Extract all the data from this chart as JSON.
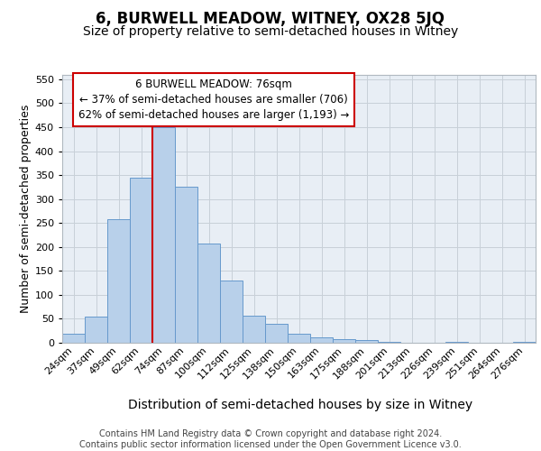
{
  "title": "6, BURWELL MEADOW, WITNEY, OX28 5JQ",
  "subtitle": "Size of property relative to semi-detached houses in Witney",
  "xlabel": "Distribution of semi-detached houses by size in Witney",
  "ylabel": "Number of semi-detached properties",
  "footer_line1": "Contains HM Land Registry data © Crown copyright and database right 2024.",
  "footer_line2": "Contains public sector information licensed under the Open Government Licence v3.0.",
  "categories": [
    "24sqm",
    "37sqm",
    "49sqm",
    "62sqm",
    "74sqm",
    "87sqm",
    "100sqm",
    "112sqm",
    "125sqm",
    "138sqm",
    "150sqm",
    "163sqm",
    "175sqm",
    "188sqm",
    "201sqm",
    "213sqm",
    "226sqm",
    "239sqm",
    "251sqm",
    "264sqm",
    "276sqm"
  ],
  "values": [
    18,
    55,
    258,
    345,
    450,
    325,
    208,
    130,
    57,
    40,
    18,
    12,
    8,
    5,
    2,
    0,
    0,
    2,
    0,
    0,
    2
  ],
  "bar_color": "#b8d0ea",
  "bar_edge_color": "#6699cc",
  "highlight_line_color": "#cc0000",
  "annotation_box_text_line1": "6 BURWELL MEADOW: 76sqm",
  "annotation_box_text_line2": "← 37% of semi-detached houses are smaller (706)",
  "annotation_box_text_line3": "62% of semi-detached houses are larger (1,193) →",
  "annotation_box_color": "#ffffff",
  "annotation_box_edge_color": "#cc0000",
  "plot_bg_color": "#e8eef5",
  "ylim": [
    0,
    560
  ],
  "yticks": [
    0,
    50,
    100,
    150,
    200,
    250,
    300,
    350,
    400,
    450,
    500,
    550
  ],
  "bg_color": "#ffffff",
  "grid_color": "#c8d0d8",
  "title_fontsize": 12,
  "subtitle_fontsize": 10,
  "xlabel_fontsize": 10,
  "ylabel_fontsize": 9,
  "tick_fontsize": 8,
  "annotation_fontsize": 8.5,
  "footer_fontsize": 7
}
